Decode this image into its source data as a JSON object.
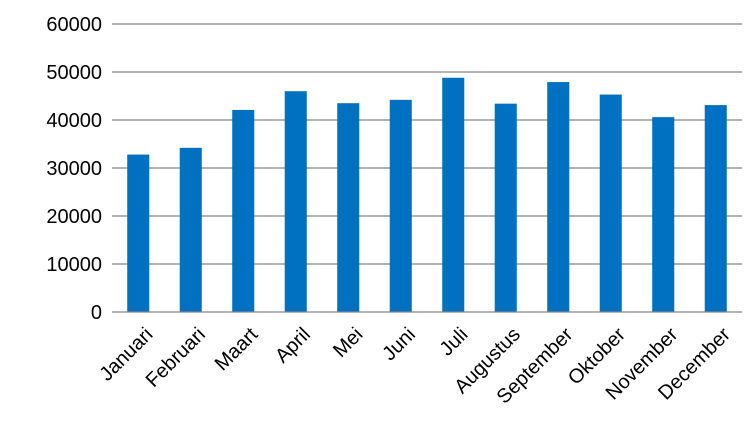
{
  "chart_data": {
    "type": "bar",
    "title": "",
    "xlabel": "",
    "ylabel": "",
    "categories": [
      "Januari",
      "Februari",
      "Maart",
      "April",
      "Mei",
      "Juni",
      "Juli",
      "Augustus",
      "September",
      "Oktober",
      "November",
      "December"
    ],
    "values": [
      32800,
      34200,
      42100,
      46000,
      43500,
      44200,
      48800,
      43400,
      47900,
      45300,
      40600,
      43100
    ],
    "ylim": [
      0,
      60000
    ],
    "yticks": [
      "0",
      "10000",
      "20000",
      "30000",
      "40000",
      "50000",
      "60000"
    ],
    "grid": true,
    "legend": "none",
    "colors": {
      "bar": "#0070C0",
      "grid": "#868686",
      "axis": "#868686"
    }
  }
}
